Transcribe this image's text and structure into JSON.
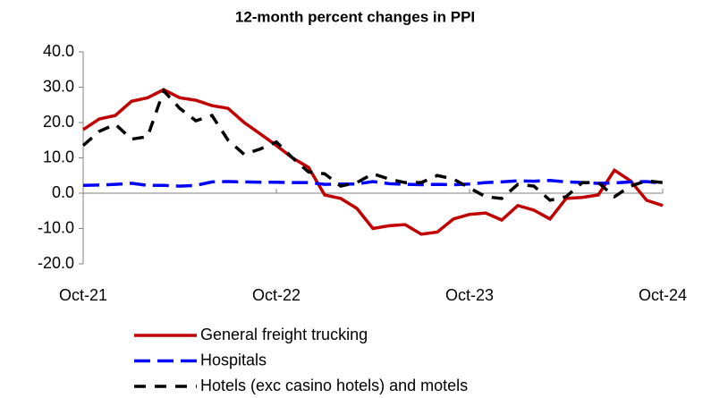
{
  "chart_data": {
    "type": "line",
    "title": "12-month percent changes in PPI",
    "categories": [
      "Oct-21",
      null,
      null,
      null,
      null,
      null,
      null,
      null,
      null,
      null,
      null,
      null,
      "Oct-22",
      null,
      null,
      null,
      null,
      null,
      null,
      null,
      null,
      null,
      null,
      null,
      "Oct-23",
      null,
      null,
      null,
      null,
      null,
      null,
      null,
      null,
      null,
      null,
      null,
      "Oct-24"
    ],
    "series": [
      {
        "name": "General freight trucking",
        "color": "#c00000",
        "dash": "solid",
        "values": [
          18,
          21,
          22,
          26,
          27,
          29.3,
          27,
          26.3,
          24.8,
          24,
          20,
          16.8,
          13.5,
          10,
          7.3,
          -0.5,
          -1.5,
          -4.3,
          -10,
          -9.2,
          -8.9,
          -11.6,
          -11,
          -7.3,
          -6,
          -5.6,
          -7.6,
          -3.5,
          -4.8,
          -7.3,
          -1.5,
          -1.2,
          -0.5,
          6.5,
          3.5,
          -2,
          -3.5
        ]
      },
      {
        "name": "Hospitals",
        "color": "#0000ff",
        "dash": "long-dash",
        "values": [
          2.2,
          2.3,
          2.5,
          2.8,
          2.2,
          2.2,
          2.0,
          2.2,
          3.2,
          3.3,
          3.2,
          3.1,
          3.1,
          3.0,
          3.0,
          2.5,
          2.6,
          2.6,
          3.3,
          2.7,
          2.5,
          2.4,
          2.5,
          2.4,
          2.6,
          3.0,
          3.2,
          3.5,
          3.4,
          3.6,
          3.2,
          3.0,
          2.8,
          2.9,
          3.2,
          3.3,
          2.8
        ]
      },
      {
        "name": "Hotels (exc casino hotels) and motels",
        "color": "#000000",
        "dash": "dash",
        "values": [
          13.5,
          17.5,
          19.5,
          15.3,
          16,
          29,
          24,
          20.5,
          22,
          15,
          11,
          12.5,
          14.5,
          10,
          6,
          5.5,
          2,
          3,
          5.5,
          4,
          3,
          3,
          5,
          4,
          1.5,
          -1,
          -1.5,
          2.5,
          2,
          -2,
          -1,
          3,
          3,
          -1,
          2,
          3.5,
          3
        ]
      }
    ],
    "ylim": [
      -20,
      40
    ],
    "yticks": [
      {
        "value": -20,
        "label": "-20.0"
      },
      {
        "value": -10,
        "label": "-10.0"
      },
      {
        "value": 0,
        "label": "0.0"
      },
      {
        "value": 10,
        "label": "10.0"
      },
      {
        "value": 20,
        "label": "20.0"
      },
      {
        "value": 30,
        "label": "30.0"
      },
      {
        "value": 40,
        "label": "40.0"
      }
    ],
    "grid": false
  }
}
